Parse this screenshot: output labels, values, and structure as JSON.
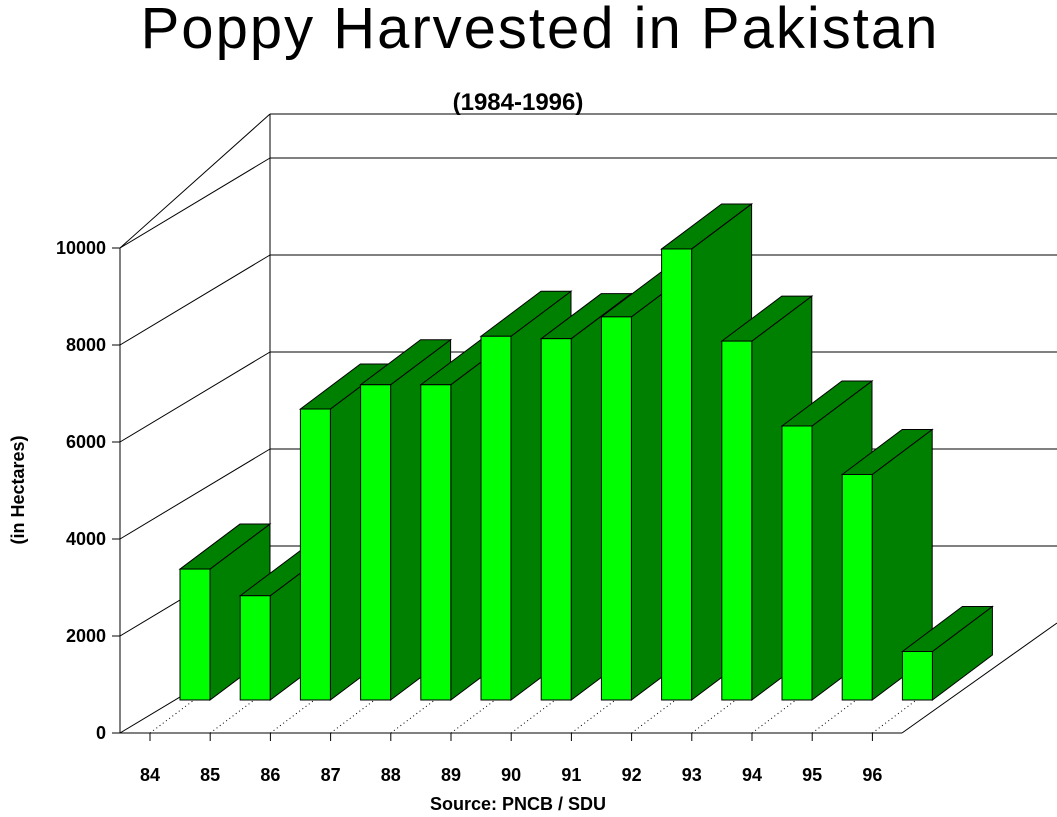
{
  "chart_data": {
    "type": "bar",
    "title": "Poppy Harvested in Pakistan",
    "subtitle": "(1984-1996)",
    "ylabel": "(in Hectares)",
    "source": "Source: PNCB / SDU",
    "categories": [
      "84",
      "85",
      "86",
      "87",
      "88",
      "89",
      "90",
      "91",
      "92",
      "93",
      "94",
      "95",
      "96"
    ],
    "values": [
      0,
      2700,
      2150,
      6000,
      6500,
      6500,
      7500,
      7450,
      7900,
      9300,
      7400,
      5650,
      4650
    ],
    "extra_bar_value": 1000,
    "ylim": [
      0,
      10000
    ],
    "yticks": [
      "0",
      "2000",
      "4000",
      "6000",
      "8000",
      "10000"
    ],
    "grid": true,
    "colors": {
      "front": "#00ff00",
      "side": "#008000",
      "top": "#008000"
    }
  }
}
